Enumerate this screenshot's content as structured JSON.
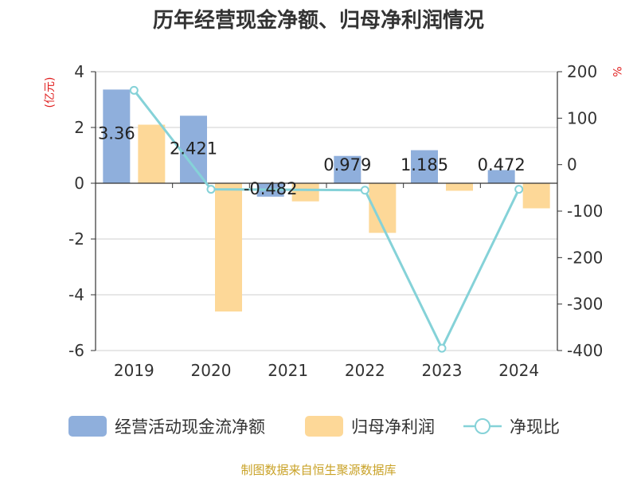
{
  "chart_data": {
    "type": "bar",
    "title": "历年经营现金净额、归母净利润情况",
    "left_unit": "(亿元)",
    "right_unit": "%",
    "categories": [
      "2019",
      "2020",
      "2021",
      "2022",
      "2023",
      "2024"
    ],
    "ylim": [
      -6,
      4
    ],
    "yticks": [
      -6,
      -4,
      -2,
      0,
      2,
      4
    ],
    "y2lim": [
      -400,
      200
    ],
    "y2ticks": [
      -400,
      -300,
      -200,
      -100,
      0,
      100,
      200
    ],
    "grid": true,
    "legend_position": "bottom",
    "series": [
      {
        "name": "经营活动现金流净额",
        "type": "bar",
        "axis": "left",
        "color": "#8fafdc",
        "values": [
          3.36,
          2.421,
          -0.482,
          0.979,
          1.185,
          0.472
        ],
        "labels": [
          "3.36",
          "2.421",
          "-0.482",
          "0.979",
          "1.185",
          "0.472"
        ]
      },
      {
        "name": "归母净利润",
        "type": "bar",
        "axis": "left",
        "color": "#fdd898",
        "values": [
          2.1,
          -4.6,
          -0.65,
          -1.78,
          -0.27,
          -0.9
        ]
      },
      {
        "name": "净现比",
        "type": "line",
        "axis": "right",
        "color": "#85d2d8",
        "values": [
          160,
          -53,
          null,
          -55,
          -395,
          -53
        ]
      }
    ]
  },
  "source": "制图数据来自恒生聚源数据库"
}
